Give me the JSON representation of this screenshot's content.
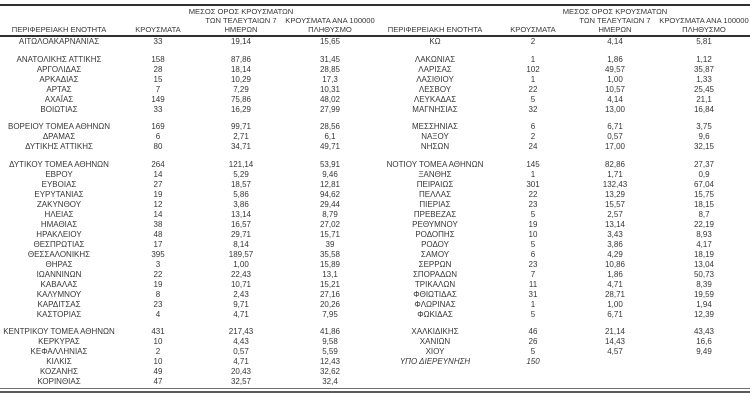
{
  "table": {
    "headers": {
      "region": "ΠΕΡΙΦΕΡΕΙΑΚΗ ΕΝΟΤΗΤΑ",
      "cases": "ΚΡΟΥΣΜΑΤΑ",
      "avg7": "ΜΕΣΟΣ ΟΡΟΣ ΚΡΟΥΣΜΑΤΩΝ\nΤΩΝ ΤΕΛΕΥΤΑΙΩΝ 7\nΗΜΕΡΩΝ",
      "per100k": "ΚΡΟΥΣΜΑΤΑ ΑΝΑ 100000\nΠΛΗΘΥΣΜΟ"
    },
    "rows": [
      {
        "left": [
          "ΑΙΤΩΛΟΑΚΑΡΝΑΝΙΑΣ",
          "33",
          "19,14",
          "15,65"
        ],
        "right": [
          "ΚΩ",
          "2",
          "4,14",
          "5,81"
        ]
      },
      {
        "separator": true
      },
      {
        "left": [
          "ΑΝΑΤΟΛΙΚΗΣ ΑΤΤΙΚΗΣ",
          "158",
          "87,86",
          "31,45"
        ],
        "right": [
          "ΛΑΚΩΝΙΑΣ",
          "1",
          "1,86",
          "1,12"
        ]
      },
      {
        "left": [
          "ΑΡΓΟΛΙΔΑΣ",
          "28",
          "18,14",
          "28,85"
        ],
        "right": [
          "ΛΑΡΙΣΑΣ",
          "102",
          "49,57",
          "35,87"
        ]
      },
      {
        "left": [
          "ΑΡΚΑΔΙΑΣ",
          "15",
          "10,29",
          "17,3"
        ],
        "right": [
          "ΛΑΣΙΘΙΟΥ",
          "1",
          "1,00",
          "1,33"
        ]
      },
      {
        "left": [
          "ΑΡΤΑΣ",
          "7",
          "7,29",
          "10,31"
        ],
        "right": [
          "ΛΕΣΒΟΥ",
          "22",
          "10,57",
          "25,45"
        ]
      },
      {
        "left": [
          "ΑΧΑΪΑΣ",
          "149",
          "75,86",
          "48,02"
        ],
        "right": [
          "ΛΕΥΚΑΔΑΣ",
          "5",
          "4,14",
          "21,1"
        ]
      },
      {
        "left": [
          "ΒΟΙΩΤΙΑΣ",
          "33",
          "16,29",
          "27,99"
        ],
        "right": [
          "ΜΑΓΝΗΣΙΑΣ",
          "32",
          "13,00",
          "16,84"
        ]
      },
      {
        "separator": true
      },
      {
        "left": [
          "ΒΟΡΕΙΟΥ ΤΟΜΕΑ ΑΘΗΝΩΝ",
          "169",
          "99,71",
          "28,56"
        ],
        "right": [
          "ΜΕΣΣΗΝΙΑΣ",
          "6",
          "6,71",
          "3,75"
        ]
      },
      {
        "left": [
          "ΔΡΑΜΑΣ",
          "6",
          "2,71",
          "6,1"
        ],
        "right": [
          "ΝΑΞΟΥ",
          "2",
          "0,57",
          "9,6"
        ]
      },
      {
        "left": [
          "ΔΥΤΙΚΗΣ ΑΤΤΙΚΗΣ",
          "80",
          "34,71",
          "49,71"
        ],
        "right": [
          "ΝΗΣΩΝ",
          "24",
          "17,00",
          "32,15"
        ]
      },
      {
        "separator": true
      },
      {
        "left": [
          "ΔΥΤΙΚΟΥ ΤΟΜΕΑ ΑΘΗΝΩΝ",
          "264",
          "121,14",
          "53,91"
        ],
        "right": [
          "ΝΟΤΙΟΥ ΤΟΜΕΑ ΑΘΗΝΩΝ",
          "145",
          "82,86",
          "27,37"
        ]
      },
      {
        "left": [
          "ΕΒΡΟΥ",
          "14",
          "5,29",
          "9,46"
        ],
        "right": [
          "ΞΑΝΘΗΣ",
          "1",
          "1,71",
          "0,9"
        ]
      },
      {
        "left": [
          "ΕΥΒΟΙΑΣ",
          "27",
          "18,57",
          "12,81"
        ],
        "right": [
          "ΠΕΙΡΑΙΩΣ",
          "301",
          "132,43",
          "67,04"
        ]
      },
      {
        "left": [
          "ΕΥΡΥΤΑΝΙΑΣ",
          "19",
          "5,86",
          "94,62"
        ],
        "right": [
          "ΠΕΛΛΑΣ",
          "22",
          "13,29",
          "15,75"
        ]
      },
      {
        "left": [
          "ΖΑΚΥΝΘΟΥ",
          "12",
          "3,86",
          "29,44"
        ],
        "right": [
          "ΠΙΕΡΙΑΣ",
          "23",
          "15,57",
          "18,15"
        ]
      },
      {
        "left": [
          "ΗΛΕΙΑΣ",
          "14",
          "13,14",
          "8,79"
        ],
        "right": [
          "ΠΡΕΒΕΖΑΣ",
          "5",
          "2,57",
          "8,7"
        ]
      },
      {
        "left": [
          "ΗΜΑΘΙΑΣ",
          "38",
          "16,57",
          "27,02"
        ],
        "right": [
          "ΡΕΘΥΜΝΟΥ",
          "19",
          "13,14",
          "22,19"
        ]
      },
      {
        "left": [
          "ΗΡΑΚΛΕΙΟΥ",
          "48",
          "29,71",
          "15,71"
        ],
        "right": [
          "ΡΟΔΟΠΗΣ",
          "10",
          "3,43",
          "8,93"
        ]
      },
      {
        "left": [
          "ΘΕΣΠΡΩΤΙΑΣ",
          "17",
          "8,14",
          "39"
        ],
        "right": [
          "ΡΟΔΟΥ",
          "5",
          "3,86",
          "4,17"
        ]
      },
      {
        "left": [
          "ΘΕΣΣΑΛΟΝΙΚΗΣ",
          "395",
          "189,57",
          "35,58"
        ],
        "right": [
          "ΣΑΜΟΥ",
          "6",
          "4,29",
          "18,19"
        ]
      },
      {
        "left": [
          "ΘΗΡΑΣ",
          "3",
          "1,00",
          "15,89"
        ],
        "right": [
          "ΣΕΡΡΩΝ",
          "23",
          "10,86",
          "13,04"
        ]
      },
      {
        "left": [
          "ΙΩΑΝΝΙΝΩΝ",
          "22",
          "22,43",
          "13,1"
        ],
        "right": [
          "ΣΠΟΡΑΔΩΝ",
          "7",
          "1,86",
          "50,73"
        ]
      },
      {
        "left": [
          "ΚΑΒΑΛΑΣ",
          "19",
          "10,71",
          "15,21"
        ],
        "right": [
          "ΤΡΙΚΑΛΩΝ",
          "11",
          "4,71",
          "8,39"
        ]
      },
      {
        "left": [
          "ΚΑΛΥΜΝΟΥ",
          "8",
          "2,43",
          "27,16"
        ],
        "right": [
          "ΦΘΙΩΤΙΔΑΣ",
          "31",
          "28,71",
          "19,59"
        ]
      },
      {
        "left": [
          "ΚΑΡΔΙΤΣΑΣ",
          "23",
          "9,71",
          "20,26"
        ],
        "right": [
          "ΦΛΩΡΙΝΑΣ",
          "1",
          "1,00",
          "1,94"
        ]
      },
      {
        "left": [
          "ΚΑΣΤΟΡΙΑΣ",
          "4",
          "4,71",
          "7,95"
        ],
        "right": [
          "ΦΩΚΙΔΑΣ",
          "5",
          "6,71",
          "12,39"
        ]
      },
      {
        "separator": true
      },
      {
        "left": [
          "ΚΕΝΤΡΙΚΟΥ ΤΟΜΕΑ ΑΘΗΝΩΝ",
          "431",
          "217,43",
          "41,86"
        ],
        "right": [
          "ΧΑΛΚΙΔΙΚΗΣ",
          "46",
          "21,14",
          "43,43"
        ]
      },
      {
        "left": [
          "ΚΕΡΚΥΡΑΣ",
          "10",
          "4,43",
          "9,58"
        ],
        "right": [
          "ΧΑΝΙΩΝ",
          "26",
          "14,43",
          "16,6"
        ]
      },
      {
        "left": [
          "ΚΕΦΑΛΛΗΝΙΑΣ",
          "2",
          "0,57",
          "5,59"
        ],
        "right": [
          "ΧΙΟΥ",
          "5",
          "4,57",
          "9,49"
        ]
      },
      {
        "left": [
          "ΚΙΛΚΙΣ",
          "10",
          "4,71",
          "12,43"
        ],
        "right": [
          "ΥΠΟ ΔΙΕΡΕΥΝΗΣΗ",
          "150",
          "",
          ""
        ],
        "right_italic": true
      },
      {
        "left": [
          "ΚΟΖΑΝΗΣ",
          "49",
          "20,43",
          "32,62"
        ],
        "right": [
          "",
          "",
          "",
          ""
        ]
      },
      {
        "left": [
          "ΚΟΡΙΝΘΙΑΣ",
          "47",
          "32,57",
          "32,4"
        ],
        "right": [
          "",
          "",
          "",
          ""
        ]
      }
    ],
    "colors": {
      "text": "#373737",
      "rule": "#303030",
      "bottom_rule": "#5a5a5a"
    }
  }
}
